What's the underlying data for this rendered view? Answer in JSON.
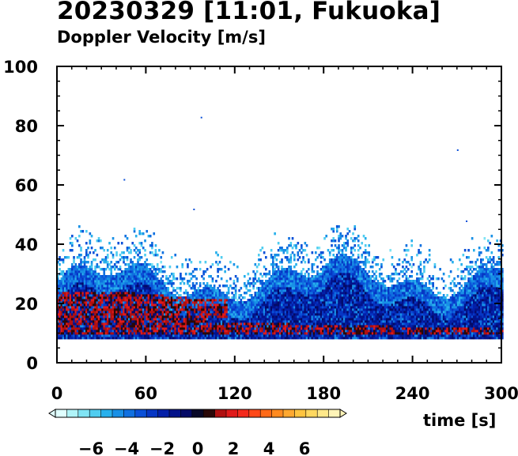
{
  "header": {
    "title": "20230329 [11:01, Fukuoka]",
    "subtitle": "Doppler Velocity [m/s]"
  },
  "chart_data": {
    "type": "heatmap",
    "title": "20230329 [11:01, Fukuoka]",
    "subtitle": "Doppler Velocity [m/s]",
    "xlabel": "time [s]",
    "ylabel": "",
    "xlim": [
      0,
      300
    ],
    "ylim": [
      0,
      100
    ],
    "x_ticks": [
      0,
      60,
      120,
      180,
      240,
      300
    ],
    "y_ticks": [
      0,
      20,
      40,
      60,
      80,
      100
    ],
    "grid": false,
    "colorbar": {
      "range": [
        -8,
        8
      ],
      "tick_values": [
        -6,
        -4,
        -2,
        0,
        2,
        4,
        6
      ],
      "tick_labels": [
        "−6",
        "−4",
        "−2",
        "0",
        "2",
        "4",
        "6"
      ],
      "colors": [
        "#e0ffff",
        "#b0f4f8",
        "#80e4f4",
        "#50cdf0",
        "#28b0ec",
        "#1890e6",
        "#1070e0",
        "#0a50d8",
        "#0636c4",
        "#0420a8",
        "#03128a",
        "#040a66",
        "#080828",
        "#2a0808",
        "#b01010",
        "#e01a1a",
        "#f42a1c",
        "#ff4818",
        "#ff6a18",
        "#ff8a20",
        "#ffa830",
        "#ffc440",
        "#ffd860",
        "#ffe88a",
        "#fff4b8"
      ]
    },
    "regions": [
      {
        "t": [
          0,
          100
        ],
        "h": [
          8,
          28
        ],
        "v": -1.8,
        "note": "blue body"
      },
      {
        "t": [
          0,
          110
        ],
        "h": [
          8,
          26
        ],
        "v": 0.8
      },
      {
        "t": [
          60,
          120
        ],
        "h": [
          14,
          24
        ],
        "v": 1.0
      },
      {
        "t": [
          120,
          300
        ],
        "h": [
          8,
          16
        ],
        "v": 0.6
      },
      {
        "t": [
          100,
          300
        ],
        "h": [
          14,
          30
        ],
        "v": -2.2
      },
      {
        "t": [
          0,
          300
        ],
        "h": [
          28,
          45
        ],
        "v": -3.5
      }
    ],
    "height_min": 8
  },
  "colors": {
    "background": "#ffffff",
    "axis": "#000000"
  }
}
